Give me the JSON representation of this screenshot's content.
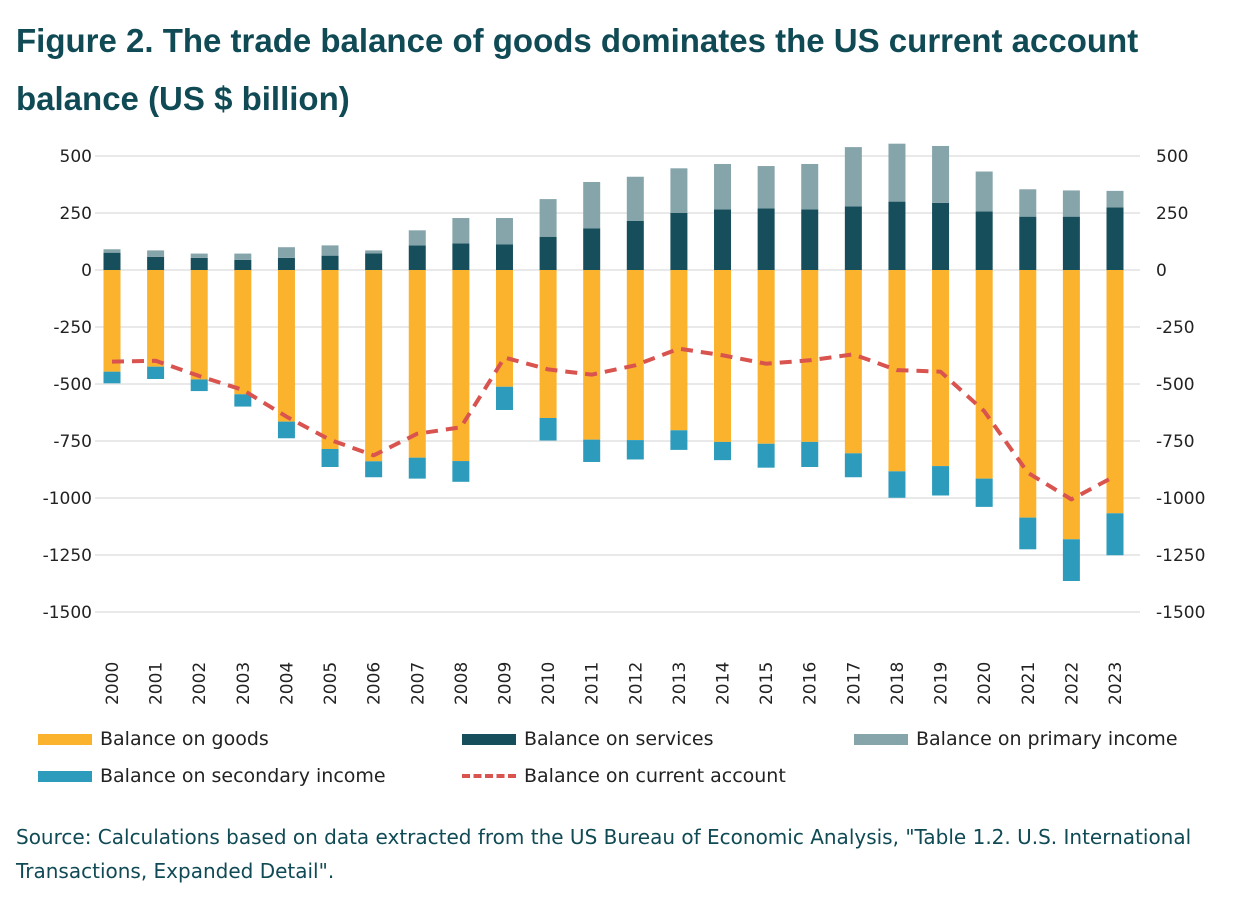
{
  "title": "Figure 2. The trade balance of goods dominates the US current account balance (US $ billion)",
  "source": "Source: Calculations based on data extracted from the US Bureau of Economic Analysis, \"Table 1.2. U.S. International Transactions, Expanded Detail\".",
  "colors": {
    "goods": "#fbb22c",
    "services": "#174e5b",
    "primary": "#86a5ab",
    "secondary": "#2d9bbb",
    "current": "#d9534f"
  },
  "chart_data": {
    "type": "bar",
    "stacked": true,
    "title": "Figure 2. The trade balance of goods dominates the US current account balance (US $ billion)",
    "xlabel": "",
    "ylabel": "US $ billion",
    "ylim": [
      -1500,
      500
    ],
    "yticks": [
      "500",
      "250",
      "0",
      "-250",
      "-500",
      "-750",
      "-1000",
      "-1250",
      "-1500"
    ],
    "ytick_values": [
      500,
      250,
      0,
      -250,
      -500,
      -750,
      -1000,
      -1250,
      -1500
    ],
    "grid": true,
    "legend_position": "bottom",
    "categories": [
      "2000",
      "2001",
      "2002",
      "2003",
      "2004",
      "2005",
      "2006",
      "2007",
      "2008",
      "2009",
      "2010",
      "2011",
      "2012",
      "2013",
      "2014",
      "2015",
      "2016",
      "2017",
      "2018",
      "2019",
      "2020",
      "2021",
      "2022",
      "2023"
    ],
    "series": [
      {
        "name": "Balance on goods",
        "key": "goods",
        "type": "bar",
        "values": [
          -446,
          -424,
          -480,
          -545,
          -665,
          -785,
          -839,
          -823,
          -838,
          -512,
          -649,
          -744,
          -746,
          -703,
          -754,
          -762,
          -754,
          -804,
          -883,
          -860,
          -915,
          -1086,
          -1181,
          -1067
        ]
      },
      {
        "name": "Balance on services",
        "key": "services",
        "type": "bar",
        "values": [
          76,
          58,
          53,
          44,
          53,
          63,
          73,
          108,
          117,
          113,
          146,
          183,
          215,
          251,
          266,
          270,
          266,
          279,
          300,
          294,
          257,
          234,
          234,
          275
        ]
      },
      {
        "name": "Balance on primary income",
        "key": "primary",
        "type": "bar",
        "values": [
          15,
          28,
          19,
          28,
          47,
          45,
          13,
          66,
          111,
          115,
          165,
          203,
          194,
          195,
          199,
          186,
          199,
          260,
          254,
          250,
          175,
          120,
          115,
          72
        ]
      },
      {
        "name": "Balance on secondary income",
        "key": "secondary",
        "type": "bar",
        "values": [
          -51,
          -54,
          -51,
          -54,
          -73,
          -79,
          -70,
          -92,
          -91,
          -102,
          -99,
          -98,
          -85,
          -86,
          -80,
          -105,
          -110,
          -105,
          -116,
          -129,
          -124,
          -139,
          -183,
          -184
        ]
      },
      {
        "name": "Balance on current account",
        "key": "current",
        "type": "line",
        "values": [
          -402,
          -398,
          -465,
          -526,
          -643,
          -745,
          -813,
          -718,
          -690,
          -384,
          -436,
          -459,
          -418,
          -345,
          -374,
          -411,
          -396,
          -370,
          -439,
          -446,
          -619,
          -889,
          -1006,
          -904
        ]
      }
    ]
  }
}
